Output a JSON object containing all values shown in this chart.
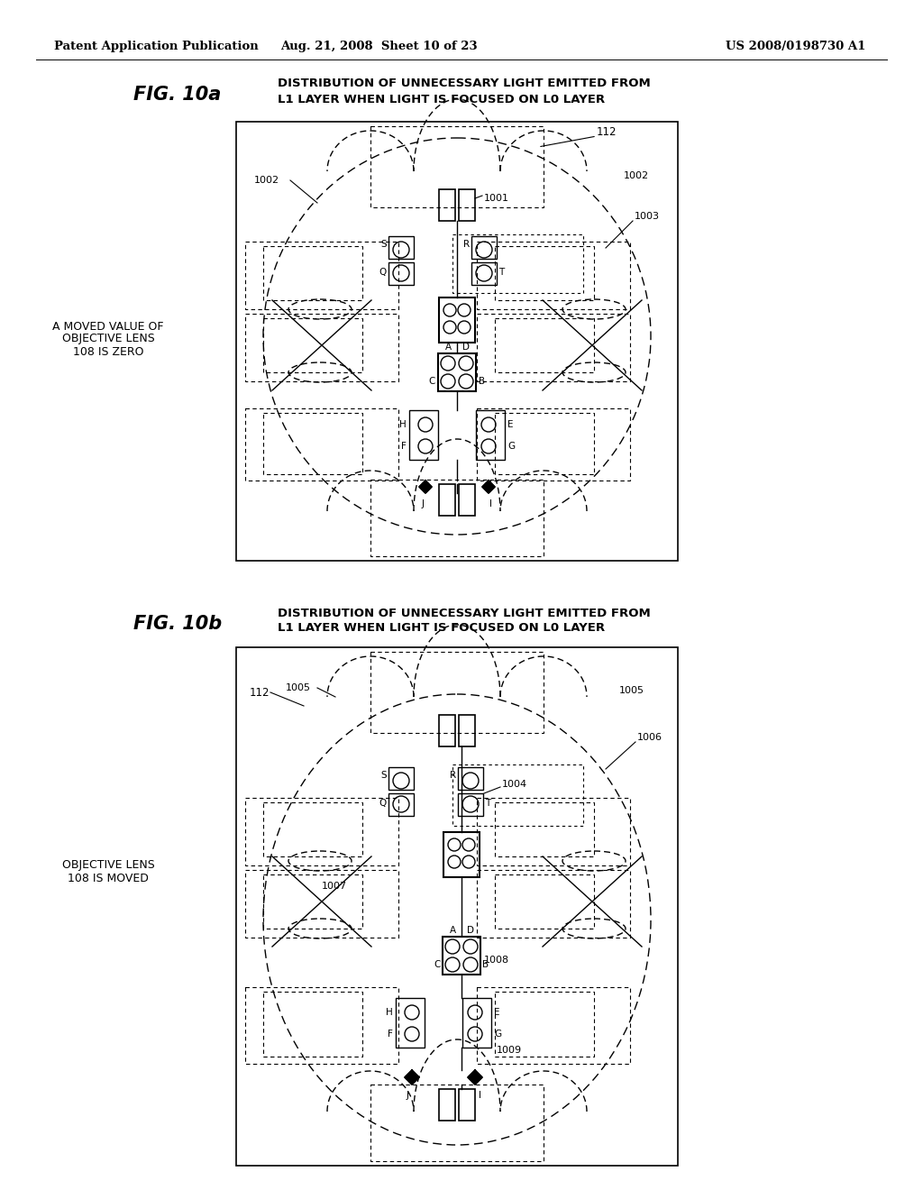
{
  "header_left": "Patent Application Publication",
  "header_center": "Aug. 21, 2008  Sheet 10 of 23",
  "header_right": "US 2008/0198730 A1",
  "fig10a_label": "FIG. 10a",
  "fig10a_title_line1": "DISTRIBUTION OF UNNECESSARY LIGHT EMITTED FROM",
  "fig10a_title_line2": "L1 LAYER WHEN LIGHT IS FOCUSED ON L0 LAYER",
  "fig10a_side_label_line1": "A MOVED VALUE OF",
  "fig10a_side_label_line2": "OBJECTIVE LENS",
  "fig10a_side_label_line3": "108 IS ZERO",
  "fig10b_label": "FIG. 10b",
  "fig10b_title_line1": "DISTRIBUTION OF UNNECESSARY LIGHT EMITTED FROM",
  "fig10b_title_line2": "L1 LAYER WHEN LIGHT IS FOCUSED ON L0 LAYER",
  "fig10b_side_label_line1": "OBJECTIVE LENS",
  "fig10b_side_label_line2": "108 IS MOVED",
  "bg_color": "#ffffff",
  "line_color": "#000000"
}
